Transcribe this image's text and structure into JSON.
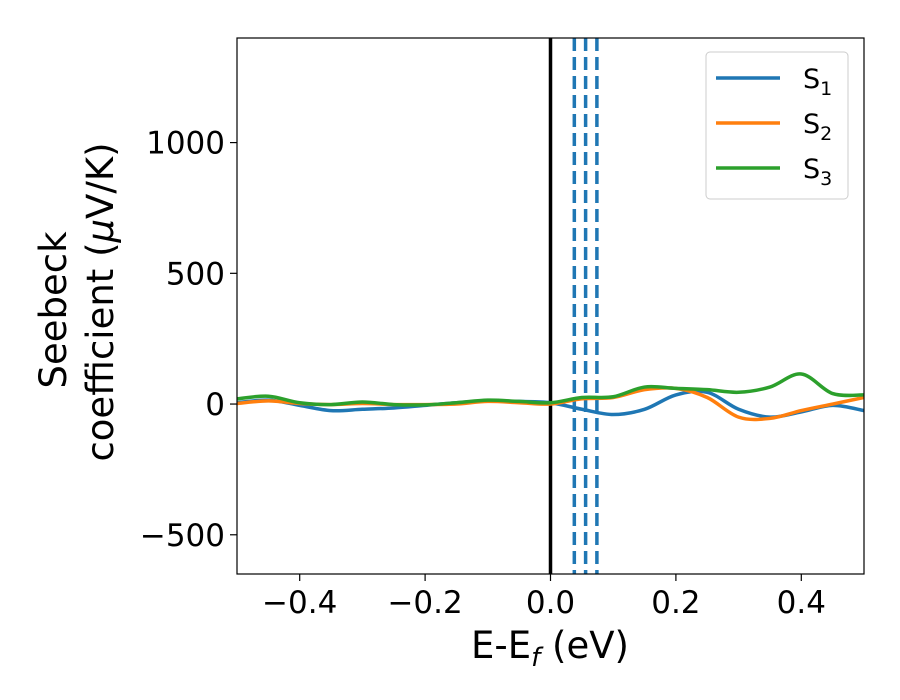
{
  "chart_data": {
    "type": "line",
    "xlabel": {
      "main": "E-E",
      "sub": "f",
      "unit": " (eV)"
    },
    "ylabel": {
      "line1": "Seebeck",
      "line2": "coefficient  (",
      "mu": "μ",
      "unit": "V/K)"
    },
    "xlim": [
      -0.5,
      0.5
    ],
    "ylim": [
      -650,
      1400
    ],
    "x_ticks": [
      -0.4,
      -0.2,
      0.0,
      0.2,
      0.4
    ],
    "x_tick_labels": [
      "−0.4",
      "−0.2",
      "0.0",
      "0.2",
      "0.4"
    ],
    "y_ticks": [
      -500,
      0,
      500,
      1000
    ],
    "y_tick_labels": [
      "−500",
      "0",
      "500",
      "1000"
    ],
    "grid": false,
    "legend_position": "top-right",
    "colors": {
      "S1": "#1f77b4",
      "S2": "#ff7f0e",
      "S3": "#2ca02c",
      "zero_line": "#000000"
    },
    "reference_lines": {
      "solid_black_x": 0.0,
      "dashed_blue_x": [
        0.038,
        0.056,
        0.074
      ]
    },
    "x": [
      -0.5,
      -0.45,
      -0.4,
      -0.35,
      -0.3,
      -0.25,
      -0.2,
      -0.15,
      -0.1,
      -0.05,
      0.0,
      0.05,
      0.1,
      0.15,
      0.2,
      0.25,
      0.3,
      0.35,
      0.4,
      0.45,
      0.5
    ],
    "series": [
      {
        "name": "S",
        "sub": "1",
        "values": [
          5,
          15,
          -5,
          -25,
          -20,
          -15,
          -5,
          5,
          12,
          10,
          5,
          -20,
          -40,
          -20,
          35,
          45,
          -20,
          -50,
          -30,
          -5,
          -25
        ]
      },
      {
        "name": "S",
        "sub": "2",
        "values": [
          2,
          12,
          2,
          -2,
          2,
          -2,
          -2,
          0,
          10,
          5,
          0,
          20,
          25,
          55,
          60,
          25,
          -50,
          -55,
          -25,
          0,
          25
        ]
      },
      {
        "name": "S",
        "sub": "3",
        "values": [
          20,
          30,
          5,
          -2,
          8,
          -2,
          -3,
          5,
          15,
          10,
          5,
          25,
          28,
          65,
          60,
          55,
          45,
          65,
          115,
          40,
          35
        ]
      }
    ]
  }
}
